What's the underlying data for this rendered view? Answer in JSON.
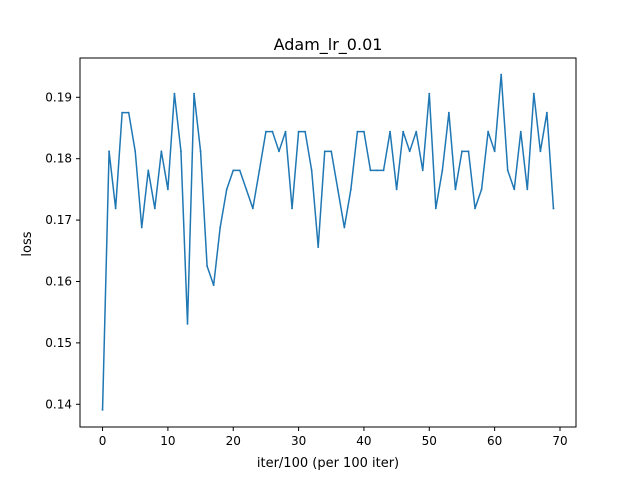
{
  "chart_data": {
    "type": "line",
    "title": "Adam_lr_0.01",
    "xlabel": "iter/100 (per 100 iter)",
    "ylabel": "loss",
    "xlim": [
      -3.45,
      72.45
    ],
    "ylim": [
      0.1363,
      0.1964
    ],
    "xticks": [
      0,
      10,
      20,
      30,
      40,
      50,
      60,
      70
    ],
    "xtick_labels": [
      "0",
      "10",
      "20",
      "30",
      "40",
      "50",
      "60",
      "70"
    ],
    "yticks": [
      0.14,
      0.15,
      0.16,
      0.17,
      0.18,
      0.19
    ],
    "ytick_labels": [
      "0.14",
      "0.15",
      "0.16",
      "0.17",
      "0.18",
      "0.19"
    ],
    "grid": false,
    "legend": "none",
    "series": [
      {
        "color": "#1f77b4",
        "x": [
          0,
          1,
          2,
          3,
          4,
          5,
          6,
          7,
          8,
          9,
          10,
          11,
          12,
          13,
          14,
          15,
          16,
          17,
          18,
          19,
          20,
          21,
          22,
          23,
          24,
          25,
          26,
          27,
          28,
          29,
          30,
          31,
          32,
          33,
          34,
          35,
          36,
          37,
          38,
          39,
          40,
          41,
          42,
          43,
          44,
          45,
          46,
          47,
          48,
          49,
          50,
          51,
          52,
          53,
          54,
          55,
          56,
          57,
          58,
          59,
          60,
          61,
          62,
          63,
          64,
          65,
          66,
          67,
          68,
          69
        ],
        "y": [
          0.1391,
          0.1812,
          0.1719,
          0.1875,
          0.1875,
          0.1812,
          0.1688,
          0.1781,
          0.1719,
          0.1812,
          0.175,
          0.1906,
          0.1812,
          0.1531,
          0.1906,
          0.1812,
          0.1625,
          0.1594,
          0.1688,
          0.175,
          0.1781,
          0.1781,
          0.175,
          0.1719,
          0.1781,
          0.1844,
          0.1844,
          0.1812,
          0.1844,
          0.1719,
          0.1844,
          0.1844,
          0.1781,
          0.1656,
          0.1812,
          0.1812,
          0.175,
          0.1688,
          0.175,
          0.1844,
          0.1844,
          0.1781,
          0.1781,
          0.1781,
          0.1844,
          0.175,
          0.1844,
          0.1812,
          0.1844,
          0.1781,
          0.1906,
          0.1719,
          0.1781,
          0.1875,
          0.175,
          0.1812,
          0.1812,
          0.1719,
          0.175,
          0.1844,
          0.1812,
          0.1937,
          0.1781,
          0.175,
          0.1844,
          0.175,
          0.1906,
          0.1812,
          0.1875,
          0.1719
        ]
      }
    ]
  }
}
